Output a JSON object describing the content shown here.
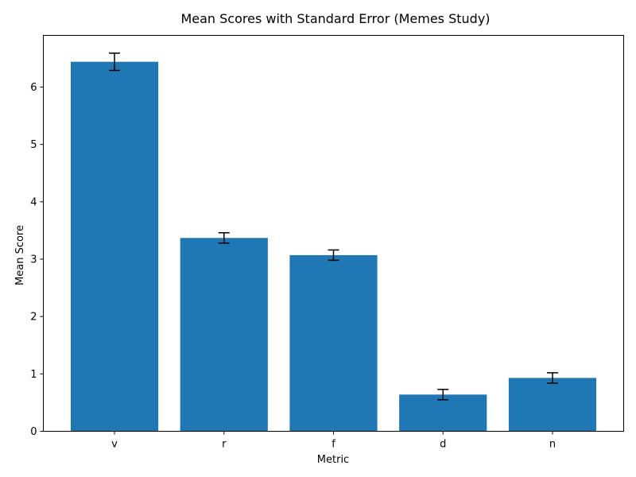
{
  "chart_data": {
    "type": "bar",
    "title": "Mean Scores with Standard Error (Memes Study)",
    "xlabel": "Metric",
    "ylabel": "Mean Score",
    "categories": [
      "v",
      "r",
      "f",
      "d",
      "n"
    ],
    "values": [
      6.44,
      3.37,
      3.07,
      0.64,
      0.93
    ],
    "errors": [
      0.15,
      0.09,
      0.09,
      0.09,
      0.09
    ],
    "ylim": [
      0,
      6.9
    ],
    "yticks": [
      0,
      1,
      2,
      3,
      4,
      5,
      6
    ],
    "grid": false,
    "legend": "none",
    "colors": {
      "bar": "#1f77b4",
      "error": "#000000",
      "axis": "#000000"
    }
  }
}
